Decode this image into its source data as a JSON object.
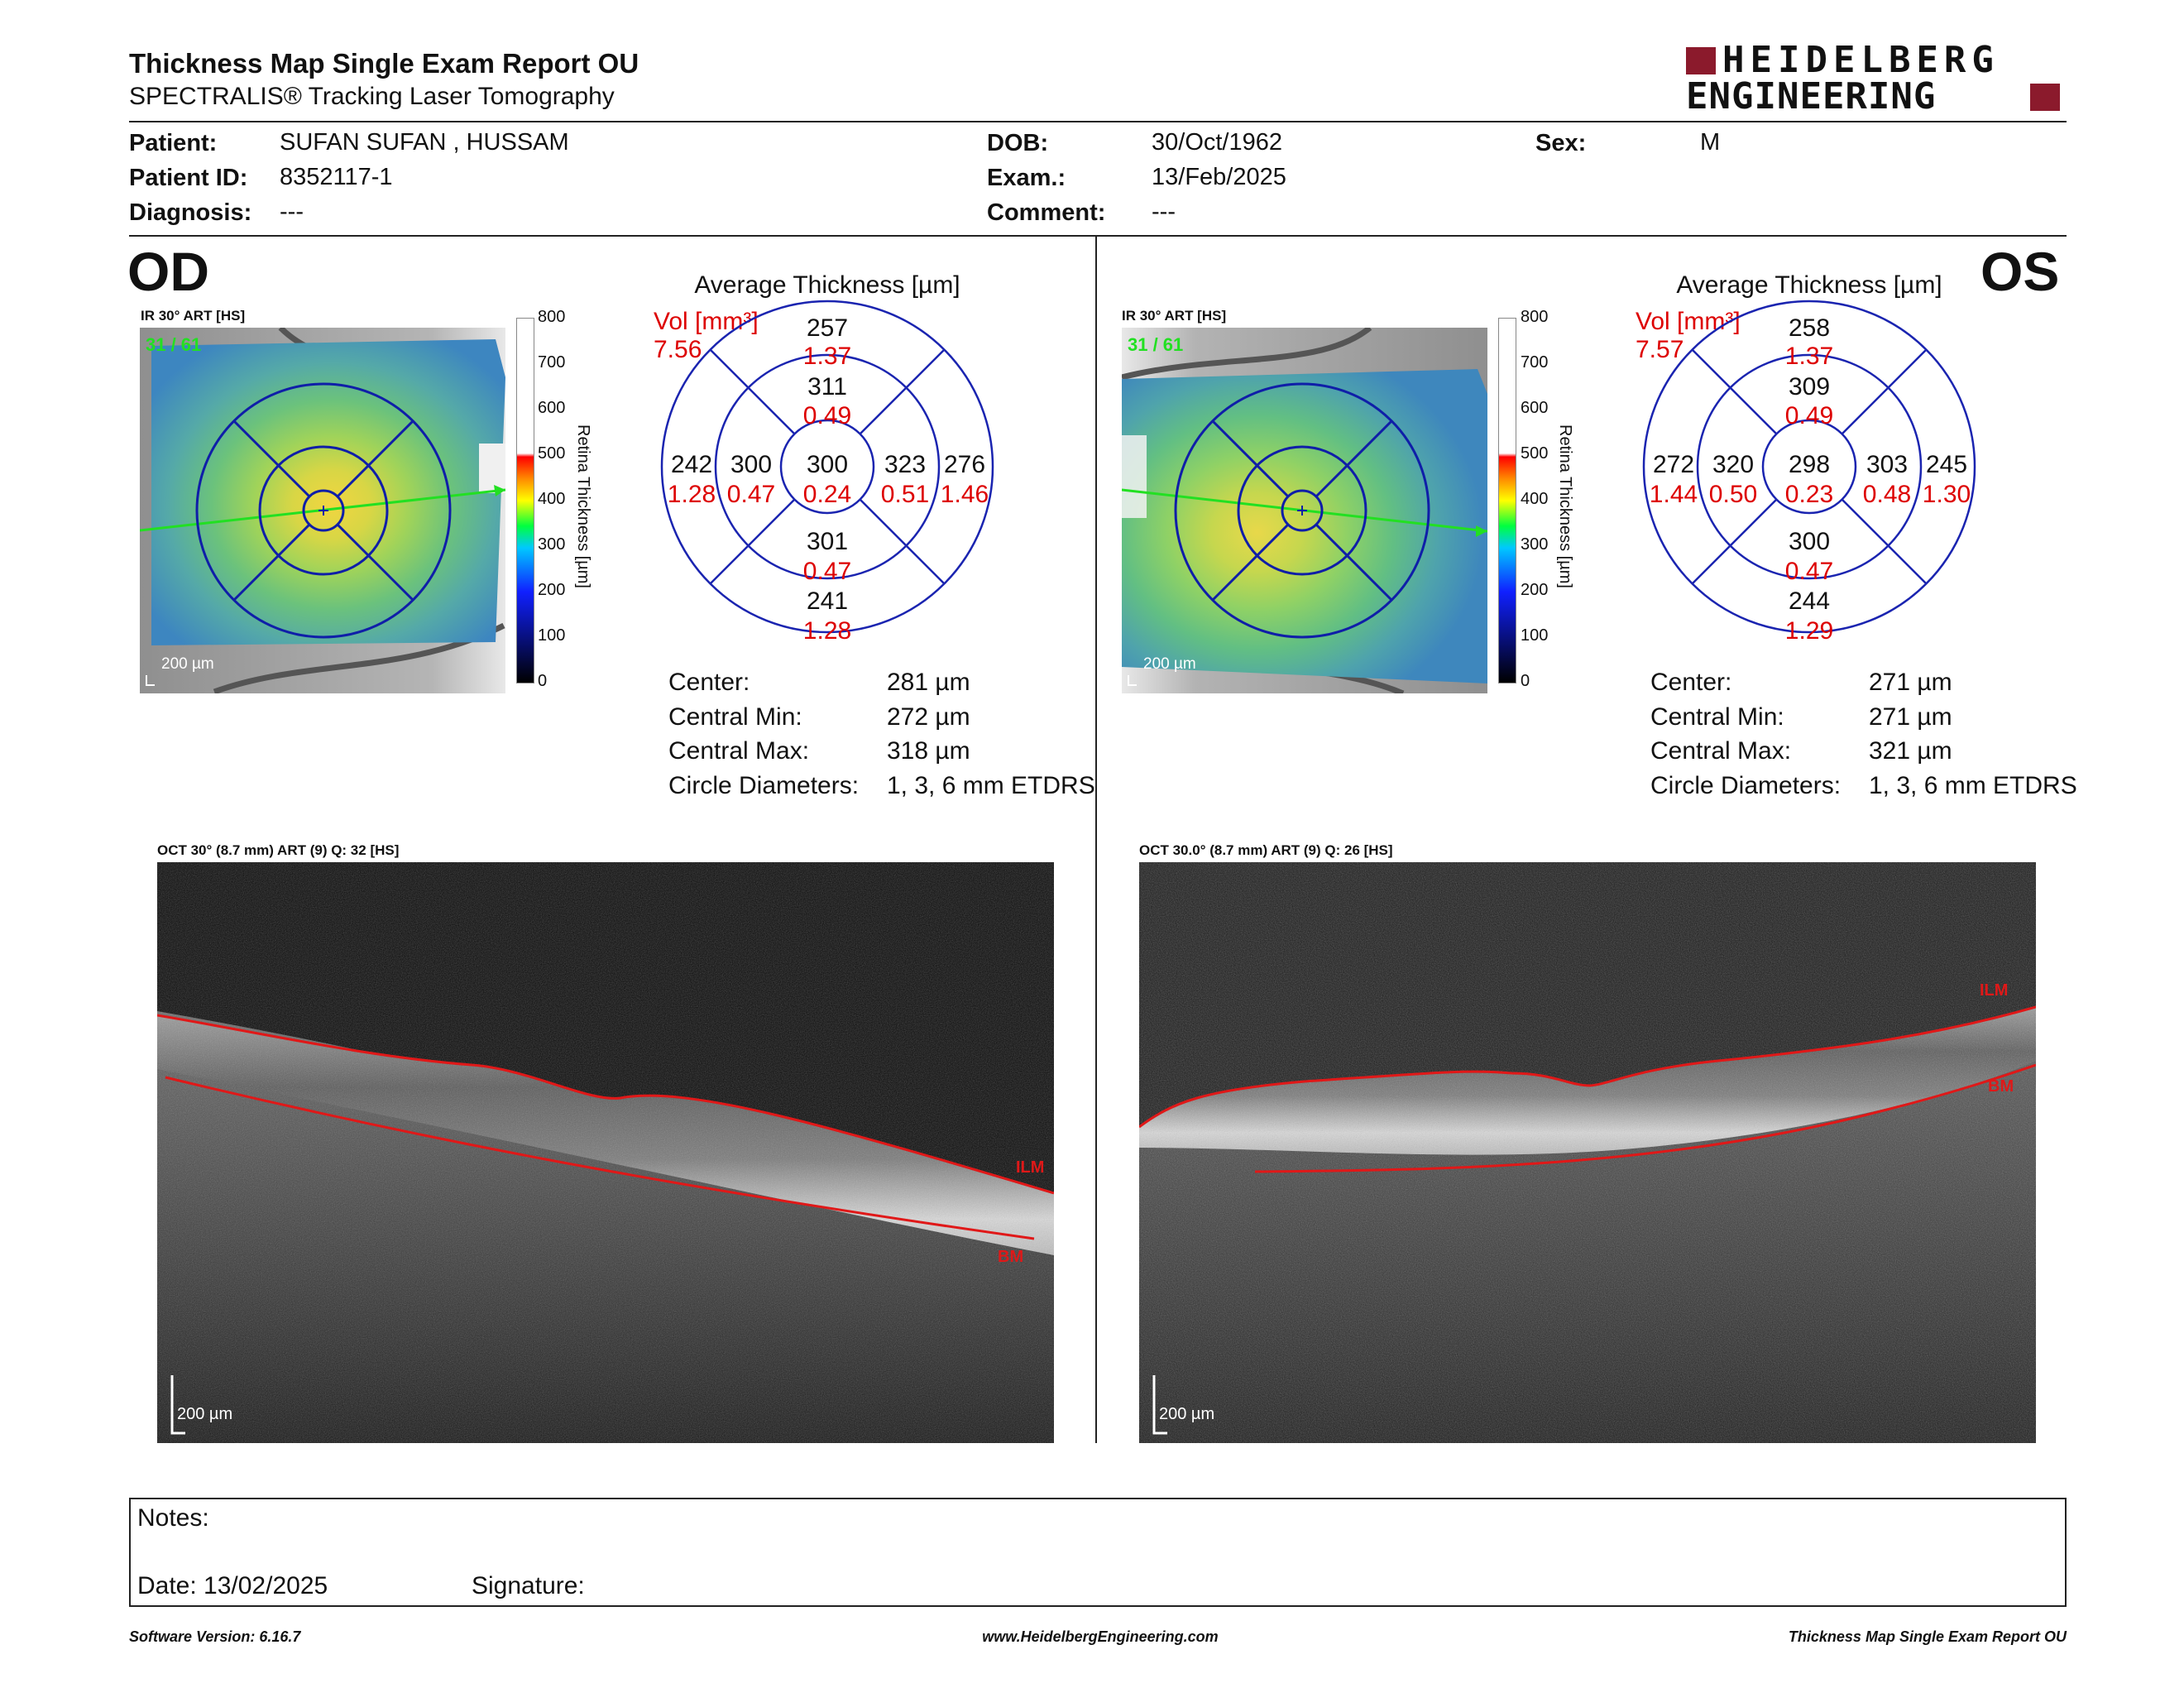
{
  "report": {
    "title": "Thickness Map Single Exam Report OU",
    "subtitle": "SPECTRALIS® Tracking Laser Tomography",
    "brand_line1": "HEIDELBERG",
    "brand_line2": "ENGINEERING",
    "brand_color": "#8b1a2c"
  },
  "patient": {
    "patient_label": "Patient:",
    "patient_value": "SUFAN SUFAN , HUSSAM",
    "id_label": "Patient ID:",
    "id_value": "8352117-1",
    "diagnosis_label": "Diagnosis:",
    "diagnosis_value": "---",
    "dob_label": "DOB:",
    "dob_value": "30/Oct/1962",
    "exam_label": "Exam.:",
    "exam_value": "13/Feb/2025",
    "comment_label": "Comment:",
    "comment_value": "---",
    "sex_label": "Sex:",
    "sex_value": "M"
  },
  "od": {
    "eye": "OD",
    "ir_title": "IR 30° ART [HS]",
    "frame": "31 / 61",
    "scalebar": "200 µm",
    "avg_title": "Average Thickness [µm]",
    "vol_label": "Vol [mm³]",
    "vol_value": "7.56",
    "grid": {
      "center_t": "300",
      "center_v": "0.24",
      "inner_sup_t": "311",
      "inner_sup_v": "0.49",
      "inner_inf_t": "301",
      "inner_inf_v": "0.47",
      "inner_left_t": "300",
      "inner_left_v": "0.47",
      "inner_right_t": "323",
      "inner_right_v": "0.51",
      "outer_sup_t": "257",
      "outer_sup_v": "1.37",
      "outer_inf_t": "241",
      "outer_inf_v": "1.28",
      "outer_left_t": "242",
      "outer_left_v": "1.28",
      "outer_right_t": "276",
      "outer_right_v": "1.46"
    },
    "stats": {
      "center_label": "Center:",
      "center_value": "281 µm",
      "min_label": "Central Min:",
      "min_value": "272 µm",
      "max_label": "Central Max:",
      "max_value": "318 µm",
      "diam_label": "Circle Diameters:",
      "diam_value": "1, 3, 6 mm ETDRS"
    },
    "oct_title": "OCT 30° (8.7 mm) ART (9) Q: 32 [HS]",
    "oct_scalebar": "200 µm",
    "ilm": "ILM",
    "bm": "BM"
  },
  "os": {
    "eye": "OS",
    "ir_title": "IR 30° ART [HS]",
    "frame": "31 / 61",
    "scalebar": "200 µm",
    "avg_title": "Average Thickness [µm]",
    "vol_label": "Vol [mm³]",
    "vol_value": "7.57",
    "grid": {
      "center_t": "298",
      "center_v": "0.23",
      "inner_sup_t": "309",
      "inner_sup_v": "0.49",
      "inner_inf_t": "300",
      "inner_inf_v": "0.47",
      "inner_left_t": "320",
      "inner_left_v": "0.50",
      "inner_right_t": "303",
      "inner_right_v": "0.48",
      "outer_sup_t": "258",
      "outer_sup_v": "1.37",
      "outer_inf_t": "244",
      "outer_inf_v": "1.29",
      "outer_left_t": "272",
      "outer_left_v": "1.44",
      "outer_right_t": "245",
      "outer_right_v": "1.30"
    },
    "stats": {
      "center_label": "Center:",
      "center_value": "271 µm",
      "min_label": "Central Min:",
      "min_value": "271 µm",
      "max_label": "Central Max:",
      "max_value": "321 µm",
      "diam_label": "Circle Diameters:",
      "diam_value": "1, 3, 6 mm ETDRS"
    },
    "oct_title": "OCT 30.0° (8.7 mm) ART (9) Q: 26 [HS]",
    "oct_scalebar": "200 µm",
    "ilm": "ILM",
    "bm": "BM"
  },
  "colorbar": {
    "ticks": [
      "800",
      "700",
      "600",
      "500",
      "400",
      "300",
      "200",
      "100",
      "0"
    ],
    "axis_label": "Retina Thickness [µm]"
  },
  "notes": {
    "notes_label": "Notes:",
    "date_label": "Date: 13/02/2025",
    "signature_label": "Signature:"
  },
  "footer": {
    "version": "Software Version: 6.16.7",
    "website": "www.HeidelbergEngineering.com",
    "report_name": "Thickness Map Single Exam Report OU"
  }
}
